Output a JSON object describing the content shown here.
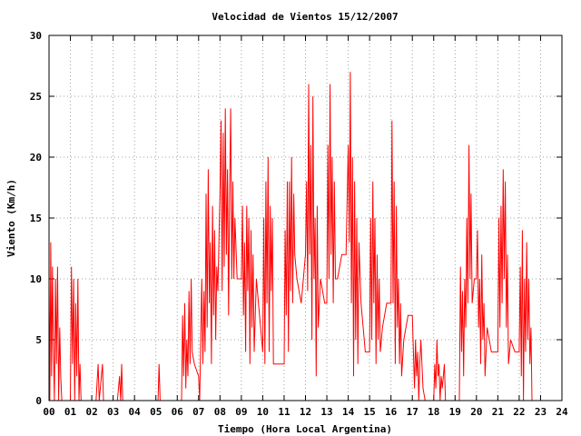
{
  "chart_data": {
    "type": "line",
    "title": "Velocidad de Vientos 15/12/2007",
    "xlabel": "Tiempo (Hora Local Argentina)",
    "ylabel": "Viento (Km/h)",
    "xlim": [
      0,
      24
    ],
    "ylim": [
      0,
      30
    ],
    "x_ticks": [
      "00",
      "01",
      "02",
      "03",
      "04",
      "05",
      "06",
      "07",
      "08",
      "09",
      "10",
      "11",
      "12",
      "13",
      "14",
      "15",
      "16",
      "17",
      "18",
      "19",
      "20",
      "21",
      "22",
      "23",
      "24"
    ],
    "y_ticks": [
      "0",
      "5",
      "10",
      "15",
      "20",
      "25",
      "30"
    ],
    "grid": true,
    "series": [
      {
        "color": "#ff0000",
        "values": [
          [
            0.0,
            10
          ],
          [
            0.04,
            0
          ],
          [
            0.08,
            13
          ],
          [
            0.12,
            2
          ],
          [
            0.16,
            11
          ],
          [
            0.2,
            5
          ],
          [
            0.25,
            0
          ],
          [
            0.3,
            10
          ],
          [
            0.35,
            3
          ],
          [
            0.4,
            11
          ],
          [
            0.45,
            0
          ],
          [
            0.5,
            6
          ],
          [
            0.55,
            2
          ],
          [
            0.6,
            0
          ],
          [
            1.0,
            0
          ],
          [
            1.05,
            11
          ],
          [
            1.1,
            3
          ],
          [
            1.15,
            10
          ],
          [
            1.2,
            0
          ],
          [
            1.25,
            8
          ],
          [
            1.3,
            2
          ],
          [
            1.35,
            10
          ],
          [
            1.4,
            0
          ],
          [
            1.45,
            3
          ],
          [
            1.5,
            0
          ],
          [
            2.2,
            0
          ],
          [
            2.3,
            3
          ],
          [
            2.35,
            0
          ],
          [
            2.4,
            1
          ],
          [
            2.5,
            3
          ],
          [
            2.55,
            0
          ],
          [
            3.2,
            0
          ],
          [
            3.3,
            2
          ],
          [
            3.35,
            0
          ],
          [
            3.4,
            3
          ],
          [
            3.45,
            0
          ],
          [
            5.1,
            0
          ],
          [
            5.15,
            3
          ],
          [
            5.2,
            0
          ],
          [
            6.2,
            0
          ],
          [
            6.25,
            7
          ],
          [
            6.3,
            2
          ],
          [
            6.35,
            8
          ],
          [
            6.4,
            1
          ],
          [
            6.45,
            5
          ],
          [
            6.5,
            2
          ],
          [
            6.55,
            9
          ],
          [
            6.6,
            3
          ],
          [
            6.65,
            10
          ],
          [
            6.7,
            4
          ],
          [
            6.8,
            3
          ],
          [
            7.0,
            2
          ],
          [
            7.05,
            0
          ],
          [
            7.1,
            5
          ],
          [
            7.15,
            10
          ],
          [
            7.2,
            3
          ],
          [
            7.25,
            9
          ],
          [
            7.3,
            4
          ],
          [
            7.35,
            17
          ],
          [
            7.4,
            6
          ],
          [
            7.45,
            19
          ],
          [
            7.5,
            8
          ],
          [
            7.55,
            13
          ],
          [
            7.6,
            3
          ],
          [
            7.65,
            16
          ],
          [
            7.7,
            7
          ],
          [
            7.75,
            14
          ],
          [
            7.8,
            5
          ],
          [
            7.85,
            11
          ],
          [
            7.9,
            9
          ],
          [
            8.0,
            17
          ],
          [
            8.05,
            23
          ],
          [
            8.1,
            9
          ],
          [
            8.15,
            22
          ],
          [
            8.2,
            11
          ],
          [
            8.25,
            24
          ],
          [
            8.3,
            12
          ],
          [
            8.35,
            19
          ],
          [
            8.4,
            7
          ],
          [
            8.45,
            17
          ],
          [
            8.5,
            24
          ],
          [
            8.55,
            10
          ],
          [
            8.6,
            18
          ],
          [
            8.65,
            10
          ],
          [
            8.7,
            15
          ],
          [
            8.8,
            10
          ],
          [
            9.0,
            10
          ],
          [
            9.05,
            16
          ],
          [
            9.1,
            7
          ],
          [
            9.15,
            13
          ],
          [
            9.2,
            4
          ],
          [
            9.25,
            16
          ],
          [
            9.3,
            9
          ],
          [
            9.35,
            15
          ],
          [
            9.4,
            3
          ],
          [
            9.45,
            14
          ],
          [
            9.5,
            6
          ],
          [
            9.55,
            12
          ],
          [
            9.6,
            4
          ],
          [
            9.7,
            10
          ],
          [
            10.0,
            4
          ],
          [
            10.05,
            15
          ],
          [
            10.1,
            3
          ],
          [
            10.15,
            18
          ],
          [
            10.2,
            8
          ],
          [
            10.25,
            20
          ],
          [
            10.3,
            4
          ],
          [
            10.35,
            16
          ],
          [
            10.4,
            9
          ],
          [
            10.45,
            15
          ],
          [
            10.5,
            3
          ],
          [
            10.6,
            3
          ],
          [
            10.8,
            3
          ],
          [
            11.0,
            3
          ],
          [
            11.05,
            14
          ],
          [
            11.1,
            7
          ],
          [
            11.15,
            18
          ],
          [
            11.2,
            4
          ],
          [
            11.25,
            18
          ],
          [
            11.3,
            9
          ],
          [
            11.35,
            20
          ],
          [
            11.4,
            8
          ],
          [
            11.45,
            17
          ],
          [
            11.5,
            12
          ],
          [
            11.6,
            10
          ],
          [
            11.8,
            8
          ],
          [
            12.0,
            12
          ],
          [
            12.05,
            18
          ],
          [
            12.1,
            9
          ],
          [
            12.15,
            26
          ],
          [
            12.2,
            12
          ],
          [
            12.25,
            21
          ],
          [
            12.3,
            5
          ],
          [
            12.35,
            25
          ],
          [
            12.4,
            10
          ],
          [
            12.45,
            15
          ],
          [
            12.5,
            2
          ],
          [
            12.55,
            16
          ],
          [
            12.6,
            6
          ],
          [
            12.7,
            10
          ],
          [
            12.9,
            8
          ],
          [
            13.0,
            8
          ],
          [
            13.05,
            21
          ],
          [
            13.1,
            10
          ],
          [
            13.15,
            26
          ],
          [
            13.2,
            12
          ],
          [
            13.25,
            20
          ],
          [
            13.3,
            8
          ],
          [
            13.35,
            18
          ],
          [
            13.4,
            10
          ],
          [
            13.5,
            10
          ],
          [
            13.7,
            12
          ],
          [
            13.9,
            12
          ],
          [
            14.0,
            21
          ],
          [
            14.05,
            13
          ],
          [
            14.1,
            27
          ],
          [
            14.15,
            8
          ],
          [
            14.2,
            20
          ],
          [
            14.25,
            2
          ],
          [
            14.3,
            18
          ],
          [
            14.35,
            5
          ],
          [
            14.4,
            15
          ],
          [
            14.45,
            3
          ],
          [
            14.5,
            13
          ],
          [
            14.6,
            8
          ],
          [
            14.8,
            4
          ],
          [
            15.0,
            4
          ],
          [
            15.05,
            15
          ],
          [
            15.1,
            5
          ],
          [
            15.15,
            18
          ],
          [
            15.2,
            8
          ],
          [
            15.25,
            15
          ],
          [
            15.3,
            3
          ],
          [
            15.35,
            12
          ],
          [
            15.4,
            5
          ],
          [
            15.45,
            10
          ],
          [
            15.5,
            4
          ],
          [
            15.6,
            6
          ],
          [
            15.8,
            8
          ],
          [
            16.0,
            8
          ],
          [
            16.05,
            23
          ],
          [
            16.1,
            8
          ],
          [
            16.15,
            18
          ],
          [
            16.2,
            3
          ],
          [
            16.25,
            16
          ],
          [
            16.3,
            6
          ],
          [
            16.35,
            10
          ],
          [
            16.4,
            3
          ],
          [
            16.45,
            8
          ],
          [
            16.5,
            2
          ],
          [
            16.6,
            5
          ],
          [
            16.8,
            7
          ],
          [
            17.0,
            7
          ],
          [
            17.05,
            4
          ],
          [
            17.1,
            1
          ],
          [
            17.15,
            5
          ],
          [
            17.2,
            2
          ],
          [
            17.25,
            4
          ],
          [
            17.3,
            0
          ],
          [
            17.35,
            3
          ],
          [
            17.4,
            5
          ],
          [
            17.5,
            1
          ],
          [
            17.6,
            0
          ],
          [
            18.0,
            0
          ],
          [
            18.05,
            3
          ],
          [
            18.1,
            1
          ],
          [
            18.15,
            5
          ],
          [
            18.2,
            2
          ],
          [
            18.25,
            3
          ],
          [
            18.3,
            0
          ],
          [
            18.35,
            2
          ],
          [
            18.4,
            1
          ],
          [
            18.5,
            3
          ],
          [
            18.55,
            0
          ],
          [
            19.2,
            0
          ],
          [
            19.25,
            11
          ],
          [
            19.3,
            4
          ],
          [
            19.35,
            9
          ],
          [
            19.4,
            2
          ],
          [
            19.45,
            10
          ],
          [
            19.5,
            6
          ],
          [
            19.55,
            15
          ],
          [
            19.6,
            8
          ],
          [
            19.65,
            21
          ],
          [
            19.7,
            10
          ],
          [
            19.75,
            17
          ],
          [
            19.8,
            8
          ],
          [
            19.9,
            10
          ],
          [
            20.0,
            10
          ],
          [
            20.05,
            14
          ],
          [
            20.1,
            6
          ],
          [
            20.15,
            10
          ],
          [
            20.2,
            3
          ],
          [
            20.25,
            12
          ],
          [
            20.3,
            5
          ],
          [
            20.35,
            8
          ],
          [
            20.4,
            2
          ],
          [
            20.5,
            6
          ],
          [
            20.7,
            4
          ],
          [
            21.0,
            4
          ],
          [
            21.05,
            15
          ],
          [
            21.1,
            6
          ],
          [
            21.15,
            16
          ],
          [
            21.2,
            8
          ],
          [
            21.25,
            19
          ],
          [
            21.3,
            10
          ],
          [
            21.35,
            18
          ],
          [
            21.4,
            6
          ],
          [
            21.45,
            12
          ],
          [
            21.5,
            3
          ],
          [
            21.6,
            5
          ],
          [
            21.8,
            4
          ],
          [
            22.0,
            4
          ],
          [
            22.05,
            11
          ],
          [
            22.1,
            2
          ],
          [
            22.15,
            14
          ],
          [
            22.2,
            0
          ],
          [
            22.25,
            10
          ],
          [
            22.3,
            4
          ],
          [
            22.35,
            13
          ],
          [
            22.4,
            5
          ],
          [
            22.45,
            10
          ],
          [
            22.5,
            3
          ],
          [
            22.55,
            6
          ],
          [
            22.6,
            0
          ]
        ]
      }
    ]
  }
}
